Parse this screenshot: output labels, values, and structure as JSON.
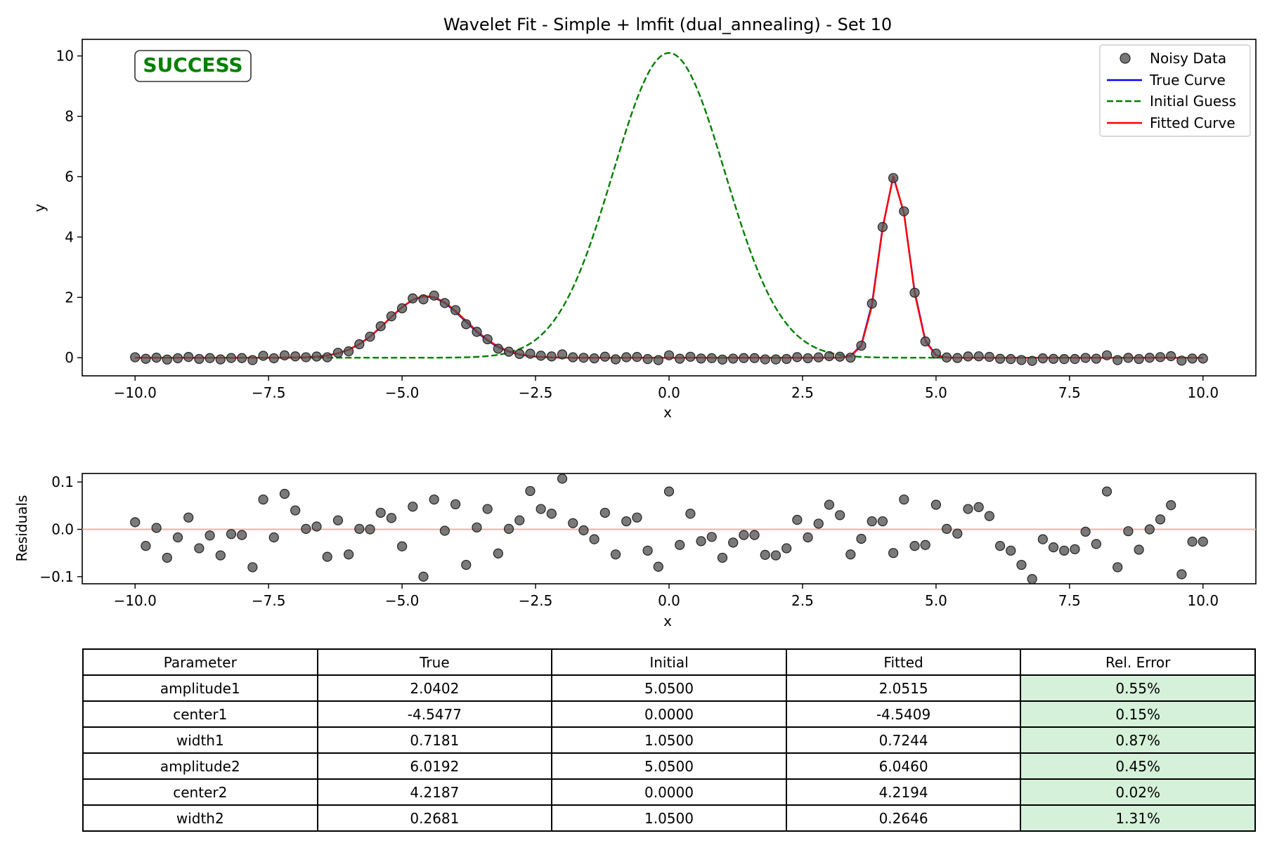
{
  "chart_data": [
    {
      "type": "scatter+line",
      "title": "Wavelet Fit - Simple + lmfit (dual_annealing) - Set 10",
      "xlabel": "x",
      "ylabel": "y",
      "xlim": [
        -10.99,
        10.99
      ],
      "ylim": [
        -0.6,
        10.55
      ],
      "xticks": [
        -10.0,
        -7.5,
        -5.0,
        -2.5,
        0.0,
        2.5,
        5.0,
        7.5,
        10.0
      ],
      "yticks": [
        0,
        2,
        4,
        6,
        8,
        10
      ],
      "status_label": "SUCCESS",
      "legend": {
        "placement": "top-right",
        "entries": [
          "Noisy Data",
          "True Curve",
          "Initial Guess",
          "Fitted Curve"
        ]
      },
      "x": [
        -10.0,
        -9.8,
        -9.6,
        -9.4,
        -9.2,
        -9.0,
        -8.8,
        -8.6,
        -8.4,
        -8.2,
        -8.0,
        -7.8,
        -7.6,
        -7.4,
        -7.2,
        -7.0,
        -6.8,
        -6.6,
        -6.4,
        -6.2,
        -6.0,
        -5.8,
        -5.6,
        -5.4,
        -5.2,
        -5.0,
        -4.8,
        -4.6,
        -4.4,
        -4.2,
        -4.0,
        -3.8,
        -3.6,
        -3.4,
        -3.2,
        -3.0,
        -2.8,
        -2.6,
        -2.4,
        -2.2,
        -2.0,
        -1.8,
        -1.6,
        -1.4,
        -1.2,
        -1.0,
        -0.8,
        -0.6,
        -0.4,
        -0.2,
        0.0,
        0.2,
        0.4,
        0.6,
        0.8,
        1.0,
        1.2,
        1.4,
        1.6,
        1.8,
        2.0,
        2.2,
        2.4,
        2.6,
        2.8,
        3.0,
        3.2,
        3.4,
        3.6,
        3.8,
        4.0,
        4.2,
        4.4,
        4.6,
        4.8,
        5.0,
        5.2,
        5.4,
        5.6,
        5.8,
        6.0,
        6.2,
        6.4,
        6.6,
        6.8,
        7.0,
        7.2,
        7.4,
        7.6,
        7.8,
        8.0,
        8.2,
        8.4,
        8.6,
        8.8,
        9.0,
        9.2,
        9.4,
        9.6,
        9.8,
        10.0
      ],
      "residuals": [
        0.015,
        -0.035,
        0.003,
        -0.06,
        -0.017,
        0.025,
        -0.04,
        -0.013,
        -0.055,
        -0.01,
        -0.012,
        -0.08,
        0.063,
        -0.017,
        0.075,
        0.04,
        0.001,
        0.006,
        -0.058,
        0.019,
        -0.053,
        0.001,
        0.0,
        0.035,
        0.024,
        -0.036,
        0.048,
        -0.1,
        0.063,
        -0.003,
        0.053,
        -0.075,
        0.004,
        0.043,
        -0.051,
        0.001,
        0.019,
        0.081,
        0.043,
        0.033,
        0.107,
        0.013,
        -0.002,
        -0.021,
        0.035,
        -0.053,
        0.017,
        0.025,
        -0.045,
        -0.079,
        0.08,
        -0.033,
        0.033,
        -0.025,
        -0.016,
        -0.06,
        -0.028,
        -0.012,
        -0.012,
        -0.054,
        -0.055,
        -0.04,
        0.02,
        -0.017,
        0.012,
        0.052,
        0.03,
        -0.053,
        -0.02,
        0.017,
        0.017,
        -0.05,
        0.063,
        -0.035,
        -0.033,
        0.052,
        0.001,
        -0.009,
        0.043,
        0.047,
        0.028,
        -0.035,
        -0.045,
        -0.075,
        -0.105,
        -0.021,
        -0.038,
        -0.045,
        -0.042,
        -0.005,
        -0.031,
        0.08,
        -0.08,
        -0.004,
        -0.043,
        0.0,
        0.021,
        0.051,
        -0.095,
        -0.026,
        -0.026
      ],
      "series": [
        {
          "name": "Noisy Data",
          "kind": "scatter",
          "color": "#555555",
          "source": "true_curve + residuals"
        },
        {
          "name": "True Curve",
          "kind": "line",
          "color": "#0000ff",
          "model": {
            "amplitude1": 2.0402,
            "center1": -4.5477,
            "width1": 0.7181,
            "amplitude2": 6.0192,
            "center2": 4.2187,
            "width2": 0.2681
          }
        },
        {
          "name": "Initial Guess",
          "kind": "dashed-line",
          "color": "#007f00",
          "model": {
            "amplitude1": 5.05,
            "center1": 0.0,
            "width1": 1.05,
            "amplitude2": 5.05,
            "center2": 0.0,
            "width2": 1.05
          }
        },
        {
          "name": "Fitted Curve",
          "kind": "line",
          "color": "#ff0000",
          "model": {
            "amplitude1": 2.0515,
            "center1": -4.5409,
            "width1": 0.7244,
            "amplitude2": 6.046,
            "center2": 4.2194,
            "width2": 0.2646
          }
        }
      ]
    },
    {
      "type": "scatter",
      "xlabel": "x",
      "ylabel": "Residuals",
      "xlim": [
        -10.99,
        10.99
      ],
      "ylim": [
        -0.115,
        0.118
      ],
      "xticks": [
        -10.0,
        -7.5,
        -5.0,
        -2.5,
        0.0,
        2.5,
        5.0,
        7.5,
        10.0
      ],
      "yticks": [
        -0.1,
        0.0,
        0.1
      ],
      "zero_line_color": "#ffaaaa"
    },
    {
      "type": "table",
      "columns": [
        "Parameter",
        "True",
        "Initial",
        "Fitted",
        "Rel. Error"
      ],
      "rows": [
        [
          "amplitude1",
          "2.0402",
          "5.0500",
          "2.0515",
          "0.55%"
        ],
        [
          "center1",
          "-4.5477",
          "0.0000",
          "-4.5409",
          "0.15%"
        ],
        [
          "width1",
          "0.7181",
          "1.0500",
          "0.7244",
          "0.87%"
        ],
        [
          "amplitude2",
          "6.0192",
          "5.0500",
          "6.0460",
          "0.45%"
        ],
        [
          "center2",
          "4.2187",
          "0.0000",
          "4.2194",
          "0.02%"
        ],
        [
          "width2",
          "0.2681",
          "1.0500",
          "0.2646",
          "1.31%"
        ]
      ],
      "highlight_color": "#d5f1d9"
    }
  ]
}
